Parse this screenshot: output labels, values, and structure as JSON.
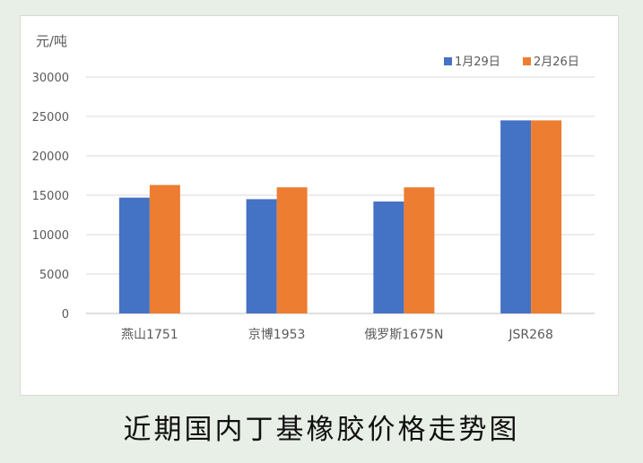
{
  "chart_data": {
    "type": "bar",
    "title": "",
    "ylabel": "元/吨",
    "xlabel": "",
    "categories": [
      "燕山1751",
      "京博1953",
      "俄罗斯1675N",
      "JSR268"
    ],
    "series": [
      {
        "name": "1月29日",
        "color": "#4472c4",
        "values": [
          14700,
          14500,
          14200,
          24500
        ]
      },
      {
        "name": "2月26日",
        "color": "#ed7d31",
        "values": [
          16300,
          16000,
          16000,
          24500
        ]
      }
    ],
    "ylim": [
      0,
      30000
    ],
    "yticks": [
      "0",
      "5000",
      "10000",
      "15000",
      "20000",
      "25000",
      "30000"
    ],
    "grid": true,
    "legend_position": "top-right"
  },
  "caption": "近期国内丁基橡胶价格走势图"
}
